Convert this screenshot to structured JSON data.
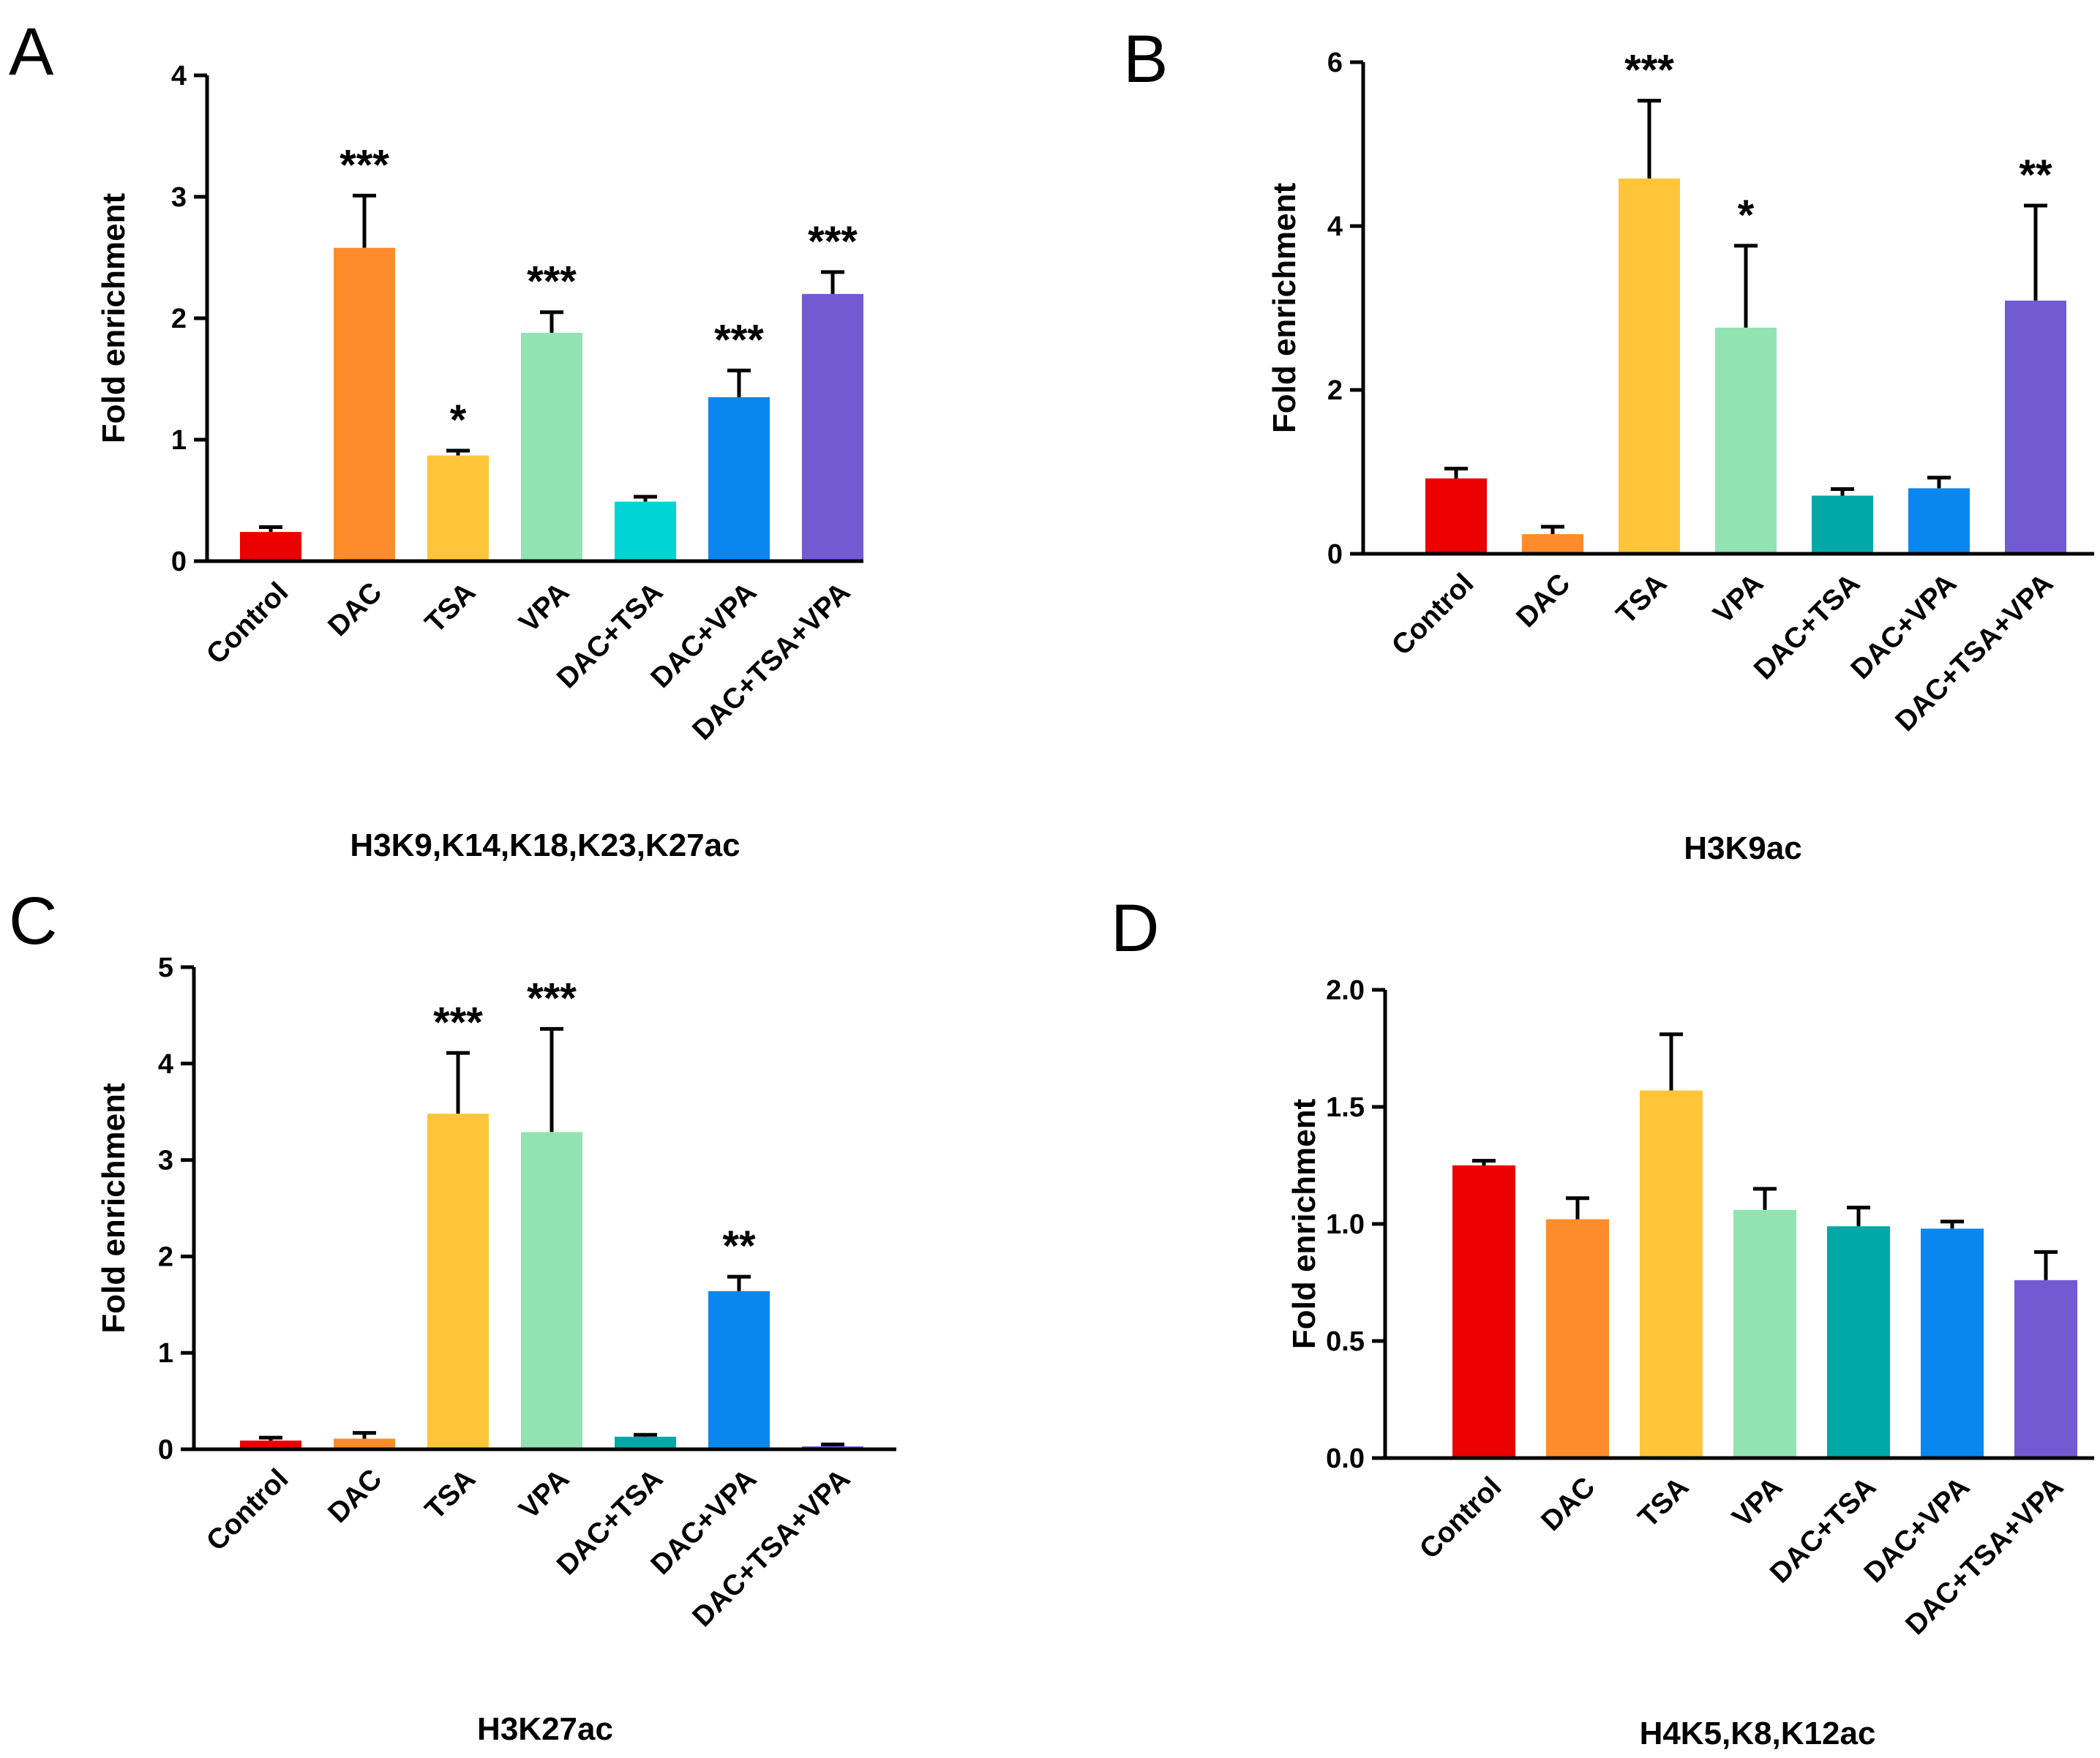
{
  "colors": {
    "Control": "#ea0000",
    "DAC": "#ff8c2a",
    "TSA": "#ffc53a",
    "VPA": "#92e3b2",
    "DAC+TSA_A": "#00d4d4",
    "DAC+TSA": "#00a8a8",
    "DAC+VPA": "#0a87ef",
    "DAC+TSA+VPA": "#725ad2"
  },
  "chart_data": [
    {
      "panel": "A",
      "type": "bar",
      "title": "H3K9,K14,K18,K23,K27ac",
      "ylabel": "Fold enrichment",
      "categories": [
        "Control",
        "DAC",
        "TSA",
        "VPA",
        "DAC+TSA",
        "DAC+VPA",
        "DAC+TSA+VPA"
      ],
      "values": [
        0.24,
        2.58,
        0.87,
        1.88,
        0.49,
        1.35,
        2.2
      ],
      "errors": [
        0.04,
        0.43,
        0.04,
        0.17,
        0.04,
        0.22,
        0.18
      ],
      "significance": [
        "",
        "***",
        "*",
        "***",
        "",
        "***",
        "***"
      ],
      "ylim": [
        0,
        4
      ],
      "yticks": [
        "0",
        "1",
        "2",
        "3",
        "4"
      ],
      "color_keys": [
        "Control",
        "DAC",
        "TSA",
        "VPA",
        "DAC+TSA_A",
        "DAC+VPA",
        "DAC+TSA+VPA"
      ]
    },
    {
      "panel": "B",
      "type": "bar",
      "title": "H3K9ac",
      "ylabel": "Fold enrichment",
      "categories": [
        "Control",
        "DAC",
        "TSA",
        "VPA",
        "DAC+TSA",
        "DAC+VPA",
        "DAC+TSA+VPA"
      ],
      "values": [
        0.92,
        0.24,
        4.58,
        2.76,
        0.71,
        0.8,
        3.09
      ],
      "errors": [
        0.12,
        0.09,
        0.95,
        1.0,
        0.08,
        0.13,
        1.16
      ],
      "significance": [
        "",
        "",
        "***",
        "*",
        "",
        "",
        "**"
      ],
      "ylim": [
        0,
        6
      ],
      "yticks": [
        "0",
        "2",
        "4",
        "6"
      ],
      "color_keys": [
        "Control",
        "DAC",
        "TSA",
        "VPA",
        "DAC+TSA",
        "DAC+VPA",
        "DAC+TSA+VPA"
      ]
    },
    {
      "panel": "C",
      "type": "bar",
      "title": "H3K27ac",
      "ylabel": "Fold enrichment",
      "categories": [
        "Control",
        "DAC",
        "TSA",
        "VPA",
        "DAC+TSA",
        "DAC+VPA",
        "DAC+TSA+VPA"
      ],
      "values": [
        0.09,
        0.11,
        3.48,
        3.29,
        0.13,
        1.64,
        0.03
      ],
      "errors": [
        0.03,
        0.06,
        0.63,
        1.07,
        0.02,
        0.15,
        0.02
      ],
      "significance": [
        "",
        "",
        "***",
        "***",
        "",
        "**",
        ""
      ],
      "ylim": [
        0,
        5
      ],
      "yticks": [
        "0",
        "1",
        "2",
        "3",
        "4",
        "5"
      ],
      "color_keys": [
        "Control",
        "DAC",
        "TSA",
        "VPA",
        "DAC+TSA",
        "DAC+VPA",
        "DAC+TSA+VPA"
      ]
    },
    {
      "panel": "D",
      "type": "bar",
      "title": "H4K5,K8,K12ac",
      "ylabel": "Fold enrichment",
      "categories": [
        "Control",
        "DAC",
        "TSA",
        "VPA",
        "DAC+TSA",
        "DAC+VPA",
        "DAC+TSA+VPA"
      ],
      "values": [
        1.25,
        1.02,
        1.57,
        1.06,
        0.99,
        0.98,
        0.76
      ],
      "errors": [
        0.02,
        0.09,
        0.24,
        0.09,
        0.08,
        0.03,
        0.12
      ],
      "significance": [
        "",
        "",
        "",
        "",
        "",
        "",
        ""
      ],
      "ylim": [
        0,
        2
      ],
      "yticks": [
        "0.0",
        "0.5",
        "1.0",
        "1.5",
        "2.0"
      ],
      "color_keys": [
        "Control",
        "DAC",
        "TSA",
        "VPA",
        "DAC+TSA",
        "DAC+VPA",
        "DAC+TSA+VPA"
      ]
    }
  ]
}
